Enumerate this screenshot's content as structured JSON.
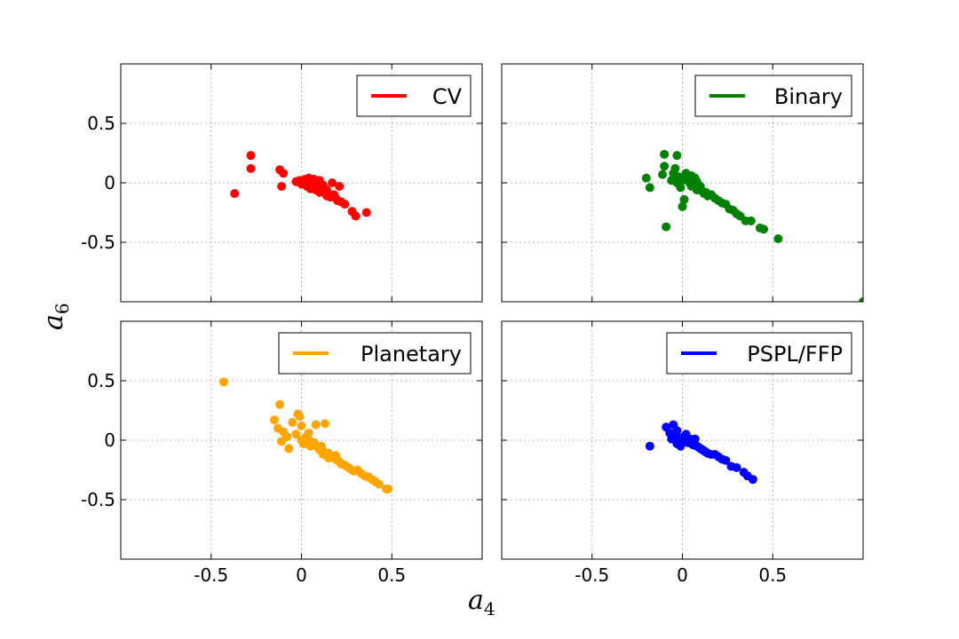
{
  "figure": {
    "xlabel": "a",
    "xlabel_sub": "4",
    "ylabel": "a",
    "ylabel_sub": "6"
  },
  "chart_data": [
    {
      "type": "scatter",
      "legend": "CV",
      "legend_position": "top-right",
      "color": "#ff0000",
      "xlim": [
        -1.0,
        1.0
      ],
      "ylim": [
        -1.0,
        1.0
      ],
      "xticks": [
        -0.5,
        0,
        0.5
      ],
      "yticks": [
        -0.5,
        0,
        0.5
      ],
      "xtick_labels": [
        "-0.5",
        "0",
        "0.5"
      ],
      "ytick_labels": [
        "-0.5",
        "0",
        "0.5"
      ],
      "grid": true,
      "points": [
        [
          -0.28,
          0.23
        ],
        [
          -0.28,
          0.12
        ],
        [
          -0.37,
          -0.09
        ],
        [
          -0.12,
          0.11
        ],
        [
          -0.1,
          0.08
        ],
        [
          -0.11,
          -0.03
        ],
        [
          -0.03,
          0.01
        ],
        [
          -0.01,
          0.02
        ],
        [
          0.0,
          -0.01
        ],
        [
          0.02,
          0.03
        ],
        [
          0.03,
          0.0
        ],
        [
          0.04,
          0.04
        ],
        [
          0.05,
          0.02
        ],
        [
          0.06,
          -0.01
        ],
        [
          0.07,
          0.03
        ],
        [
          0.08,
          0.01
        ],
        [
          0.09,
          -0.03
        ],
        [
          0.1,
          0.02
        ],
        [
          0.11,
          -0.05
        ],
        [
          0.12,
          -0.02
        ],
        [
          0.13,
          -0.08
        ],
        [
          0.14,
          -0.06
        ],
        [
          0.15,
          -0.1
        ],
        [
          0.16,
          -0.12
        ],
        [
          0.17,
          0.0
        ],
        [
          0.18,
          -0.1
        ],
        [
          0.19,
          -0.13
        ],
        [
          0.2,
          -0.15
        ],
        [
          0.21,
          -0.03
        ],
        [
          0.22,
          -0.16
        ],
        [
          0.24,
          -0.18
        ],
        [
          0.28,
          -0.24
        ],
        [
          0.3,
          -0.28
        ],
        [
          0.36,
          -0.25
        ],
        [
          0.05,
          -0.05
        ],
        [
          0.08,
          -0.06
        ],
        [
          0.1,
          -0.08
        ],
        [
          0.14,
          -0.11
        ],
        [
          0.01,
          0.0
        ],
        [
          0.03,
          -0.03
        ]
      ]
    },
    {
      "type": "scatter",
      "legend": "Binary",
      "legend_position": "top-right",
      "color": "#008000",
      "xlim": [
        -1.0,
        1.0
      ],
      "ylim": [
        -1.0,
        1.0
      ],
      "xticks": [
        -0.5,
        0,
        0.5
      ],
      "yticks": [
        -0.5,
        0,
        0.5
      ],
      "xtick_labels": [
        "-0.5",
        "0",
        "0.5"
      ],
      "ytick_labels": [
        "-0.5",
        "0",
        "0.5"
      ],
      "grid": true,
      "points": [
        [
          -0.1,
          0.24
        ],
        [
          -0.03,
          0.23
        ],
        [
          -0.1,
          0.14
        ],
        [
          -0.11,
          0.07
        ],
        [
          -0.2,
          0.04
        ],
        [
          -0.18,
          -0.04
        ],
        [
          -0.09,
          -0.37
        ],
        [
          -0.06,
          0.02
        ],
        [
          -0.05,
          0.08
        ],
        [
          -0.04,
          0.12
        ],
        [
          -0.03,
          0.0
        ],
        [
          -0.02,
          0.05
        ],
        [
          -0.01,
          -0.04
        ],
        [
          0.0,
          0.02
        ],
        [
          0.01,
          -0.14
        ],
        [
          0.0,
          -0.2
        ],
        [
          0.02,
          0.08
        ],
        [
          0.03,
          0.03
        ],
        [
          0.04,
          0.0
        ],
        [
          0.05,
          0.06
        ],
        [
          0.06,
          -0.02
        ],
        [
          0.07,
          0.04
        ],
        [
          0.08,
          0.01
        ],
        [
          0.09,
          -0.05
        ],
        [
          0.1,
          -0.03
        ],
        [
          0.11,
          -0.07
        ],
        [
          0.12,
          -0.09
        ],
        [
          0.13,
          -0.08
        ],
        [
          0.14,
          -0.11
        ],
        [
          0.16,
          -0.1
        ],
        [
          0.18,
          -0.13
        ],
        [
          0.2,
          -0.15
        ],
        [
          0.22,
          -0.17
        ],
        [
          0.24,
          -0.18
        ],
        [
          0.26,
          -0.22
        ],
        [
          0.28,
          -0.23
        ],
        [
          0.3,
          -0.26
        ],
        [
          0.32,
          -0.28
        ],
        [
          0.35,
          -0.32
        ],
        [
          0.38,
          -0.32
        ],
        [
          0.43,
          -0.38
        ],
        [
          0.45,
          -0.39
        ],
        [
          0.53,
          -0.47
        ],
        [
          1.0,
          -1.0
        ],
        [
          0.05,
          -0.03
        ],
        [
          0.08,
          -0.06
        ]
      ]
    },
    {
      "type": "scatter",
      "legend": "Planetary",
      "legend_position": "top-right",
      "color": "#ffa500",
      "xlim": [
        -1.0,
        1.0
      ],
      "ylim": [
        -1.0,
        1.0
      ],
      "xticks": [
        -0.5,
        0,
        0.5
      ],
      "yticks": [
        -0.5,
        0,
        0.5
      ],
      "xtick_labels": [
        "-0.5",
        "0",
        "0.5"
      ],
      "ytick_labels": [
        "-0.5",
        "0",
        "0.5"
      ],
      "grid": true,
      "points": [
        [
          -0.43,
          0.49
        ],
        [
          -0.12,
          0.3
        ],
        [
          -0.15,
          0.17
        ],
        [
          -0.13,
          0.1
        ],
        [
          -0.1,
          0.07
        ],
        [
          -0.08,
          0.03
        ],
        [
          -0.11,
          -0.01
        ],
        [
          -0.07,
          -0.07
        ],
        [
          -0.05,
          0.15
        ],
        [
          -0.02,
          0.22
        ],
        [
          -0.01,
          0.2
        ],
        [
          0.0,
          0.12
        ],
        [
          -0.03,
          0.05
        ],
        [
          0.0,
          0.0
        ],
        [
          0.02,
          0.02
        ],
        [
          0.03,
          -0.03
        ],
        [
          0.04,
          0.06
        ],
        [
          0.05,
          -0.01
        ],
        [
          0.06,
          -0.04
        ],
        [
          0.07,
          -0.02
        ],
        [
          0.08,
          0.13
        ],
        [
          0.09,
          -0.06
        ],
        [
          0.1,
          -0.08
        ],
        [
          0.11,
          -0.05
        ],
        [
          0.12,
          -0.09
        ],
        [
          0.13,
          0.14
        ],
        [
          0.14,
          -0.12
        ],
        [
          0.15,
          -0.11
        ],
        [
          0.16,
          -0.13
        ],
        [
          0.17,
          -0.14
        ],
        [
          0.18,
          -0.15
        ],
        [
          0.19,
          -0.13
        ],
        [
          0.2,
          -0.17
        ],
        [
          0.21,
          -0.18
        ],
        [
          0.22,
          -0.2
        ],
        [
          0.24,
          -0.21
        ],
        [
          0.25,
          -0.22
        ],
        [
          0.27,
          -0.24
        ],
        [
          0.29,
          -0.26
        ],
        [
          0.31,
          -0.25
        ],
        [
          0.33,
          -0.28
        ],
        [
          0.35,
          -0.3
        ],
        [
          0.37,
          -0.31
        ],
        [
          0.39,
          -0.33
        ],
        [
          0.41,
          -0.35
        ],
        [
          0.43,
          -0.37
        ],
        [
          0.47,
          -0.41
        ],
        [
          0.48,
          -0.41
        ],
        [
          0.12,
          -0.12
        ],
        [
          0.15,
          -0.15
        ],
        [
          0.05,
          -0.05
        ],
        [
          0.01,
          -0.03
        ]
      ]
    },
    {
      "type": "scatter",
      "legend": "PSPL/FFP",
      "legend_position": "top-right",
      "color": "#0000ff",
      "xlim": [
        -1.0,
        1.0
      ],
      "ylim": [
        -1.0,
        1.0
      ],
      "xticks": [
        -0.5,
        0,
        0.5
      ],
      "yticks": [
        -0.5,
        0,
        0.5
      ],
      "xtick_labels": [
        "-0.5",
        "0",
        "0.5"
      ],
      "ytick_labels": [
        "-0.5",
        "0",
        "0.5"
      ],
      "grid": true,
      "points": [
        [
          -0.18,
          -0.05
        ],
        [
          -0.09,
          0.11
        ],
        [
          -0.05,
          0.13
        ],
        [
          -0.07,
          0.06
        ],
        [
          -0.06,
          0.01
        ],
        [
          -0.04,
          0.04
        ],
        [
          -0.03,
          -0.03
        ],
        [
          -0.02,
          0.02
        ],
        [
          -0.01,
          -0.05
        ],
        [
          0.0,
          0.0
        ],
        [
          0.01,
          0.03
        ],
        [
          0.02,
          -0.01
        ],
        [
          0.03,
          -0.02
        ],
        [
          0.04,
          0.01
        ],
        [
          0.05,
          -0.03
        ],
        [
          0.06,
          -0.04
        ],
        [
          0.07,
          0.01
        ],
        [
          0.08,
          -0.05
        ],
        [
          0.09,
          -0.06
        ],
        [
          0.1,
          -0.07
        ],
        [
          0.11,
          -0.08
        ],
        [
          0.12,
          -0.09
        ],
        [
          0.13,
          -0.1
        ],
        [
          0.14,
          -0.11
        ],
        [
          0.16,
          -0.12
        ],
        [
          0.18,
          -0.12
        ],
        [
          0.2,
          -0.14
        ],
        [
          0.22,
          -0.16
        ],
        [
          0.24,
          -0.17
        ],
        [
          0.27,
          -0.22
        ],
        [
          0.3,
          -0.23
        ],
        [
          0.34,
          -0.27
        ],
        [
          0.36,
          -0.3
        ],
        [
          0.39,
          -0.33
        ],
        [
          -0.03,
          0.08
        ],
        [
          0.02,
          0.05
        ]
      ]
    }
  ]
}
